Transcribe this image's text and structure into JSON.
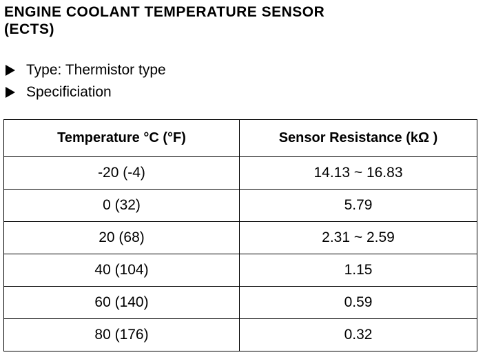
{
  "header": {
    "title_line1": "ENGINE COOLANT TEMPERATURE SENSOR",
    "title_line2": "(ECTS)"
  },
  "bullets": [
    "Type: Thermistor type",
    "Specificiation"
  ],
  "table": {
    "columns": [
      "Temperature °C (°F)",
      "Sensor Resistance (kΩ )"
    ],
    "rows": [
      [
        "-20 (-4)",
        "14.13 ~ 16.83"
      ],
      [
        "0 (32)",
        "5.79"
      ],
      [
        "20 (68)",
        "2.31 ~ 2.59"
      ],
      [
        "40 (104)",
        "1.15"
      ],
      [
        "60 (140)",
        "0.59"
      ],
      [
        "80 (176)",
        "0.32"
      ]
    ]
  }
}
